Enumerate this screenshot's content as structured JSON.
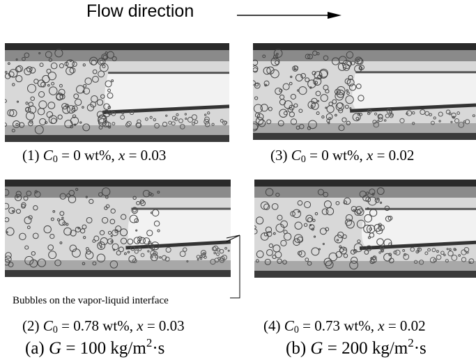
{
  "header": {
    "title": "Flow direction"
  },
  "panels": [
    {
      "caption": [
        "(1) ",
        "C",
        "0",
        " = 0 wt%, ",
        "x",
        " = 0.03"
      ]
    },
    {
      "caption": [
        "(2) ",
        "C",
        "0",
        " = 0.78 wt%, ",
        "x",
        " = 0.03"
      ]
    },
    {
      "caption": [
        "(3) ",
        "C",
        "0",
        " = 0 wt%, ",
        "x",
        " = 0.02"
      ]
    },
    {
      "caption": [
        "(4) ",
        "C",
        "0",
        " = 0.73 wt%, ",
        "x",
        " = 0.02"
      ]
    }
  ],
  "annotation": "Bubbles on the vapor-liquid interface",
  "groups": [
    {
      "label": [
        "(a) ",
        "G",
        " = 100 kg/m",
        "2",
        "·s"
      ]
    },
    {
      "label": [
        "(b) ",
        "G",
        " = 200 kg/m",
        "2",
        "·s"
      ]
    }
  ]
}
